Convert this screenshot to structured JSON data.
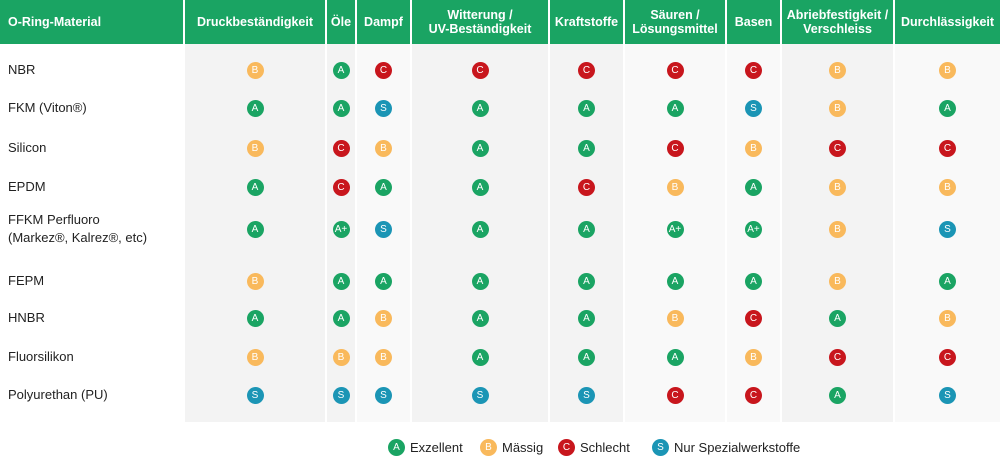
{
  "table": {
    "headers": [
      [
        "O-Ring-Material"
      ],
      [
        "Druckbeständigkeit"
      ],
      [
        "Öle"
      ],
      [
        "Dampf"
      ],
      [
        "Witterung /",
        "UV-Beständigkeit"
      ],
      [
        "Kraftstoffe"
      ],
      [
        "Säuren /",
        "Lösungsmittel"
      ],
      [
        "Basen"
      ],
      [
        "Abriebfestigkeit /",
        "Verschleiss"
      ],
      [
        "Durchlässigkeit"
      ]
    ],
    "rows": [
      {
        "material": [
          "NBR"
        ],
        "ratings": [
          "B",
          "A",
          "C",
          "C",
          "C",
          "C",
          "C",
          "B",
          "B"
        ]
      },
      {
        "material": [
          "FKM (Viton®)"
        ],
        "ratings": [
          "A",
          "A",
          "S",
          "A",
          "A",
          "A",
          "S",
          "B",
          "A"
        ]
      },
      {
        "material": [
          "Silicon"
        ],
        "ratings": [
          "B",
          "C",
          "B",
          "A",
          "A",
          "C",
          "B",
          "C",
          "C"
        ]
      },
      {
        "material": [
          "EPDM"
        ],
        "ratings": [
          "A",
          "C",
          "A",
          "A",
          "C",
          "B",
          "A",
          "B",
          "B"
        ]
      },
      {
        "material": [
          "FFKM Perfluoro",
          "(Markez®, Kalrez®, etc)"
        ],
        "ratings": [
          "A",
          "A+",
          "S",
          "A",
          "A",
          "A+",
          "A+",
          "B",
          "S"
        ]
      },
      {
        "material": [
          "FEPM"
        ],
        "ratings": [
          "B",
          "A",
          "A",
          "A",
          "A",
          "A",
          "A",
          "B",
          "A"
        ]
      },
      {
        "material": [
          "HNBR"
        ],
        "ratings": [
          "A",
          "A",
          "B",
          "A",
          "A",
          "B",
          "C",
          "A",
          "B"
        ]
      },
      {
        "material": [
          "Fluorsilikon"
        ],
        "ratings": [
          "B",
          "B",
          "B",
          "A",
          "A",
          "A",
          "B",
          "C",
          "C"
        ]
      },
      {
        "material": [
          "Polyurethan (PU)"
        ],
        "ratings": [
          "S",
          "S",
          "S",
          "S",
          "S",
          "C",
          "C",
          "A",
          "S"
        ]
      }
    ]
  },
  "legend": [
    {
      "grade": "A",
      "label": "Exzellent",
      "color": "#1aa463"
    },
    {
      "grade": "B",
      "label": "Mässig",
      "color": "#f9b95c"
    },
    {
      "grade": "C",
      "label": "Schlecht",
      "color": "#c8161d"
    },
    {
      "grade": "S",
      "label": "Nur Spezialwerkstoffe",
      "color": "#1b95b5"
    }
  ]
}
